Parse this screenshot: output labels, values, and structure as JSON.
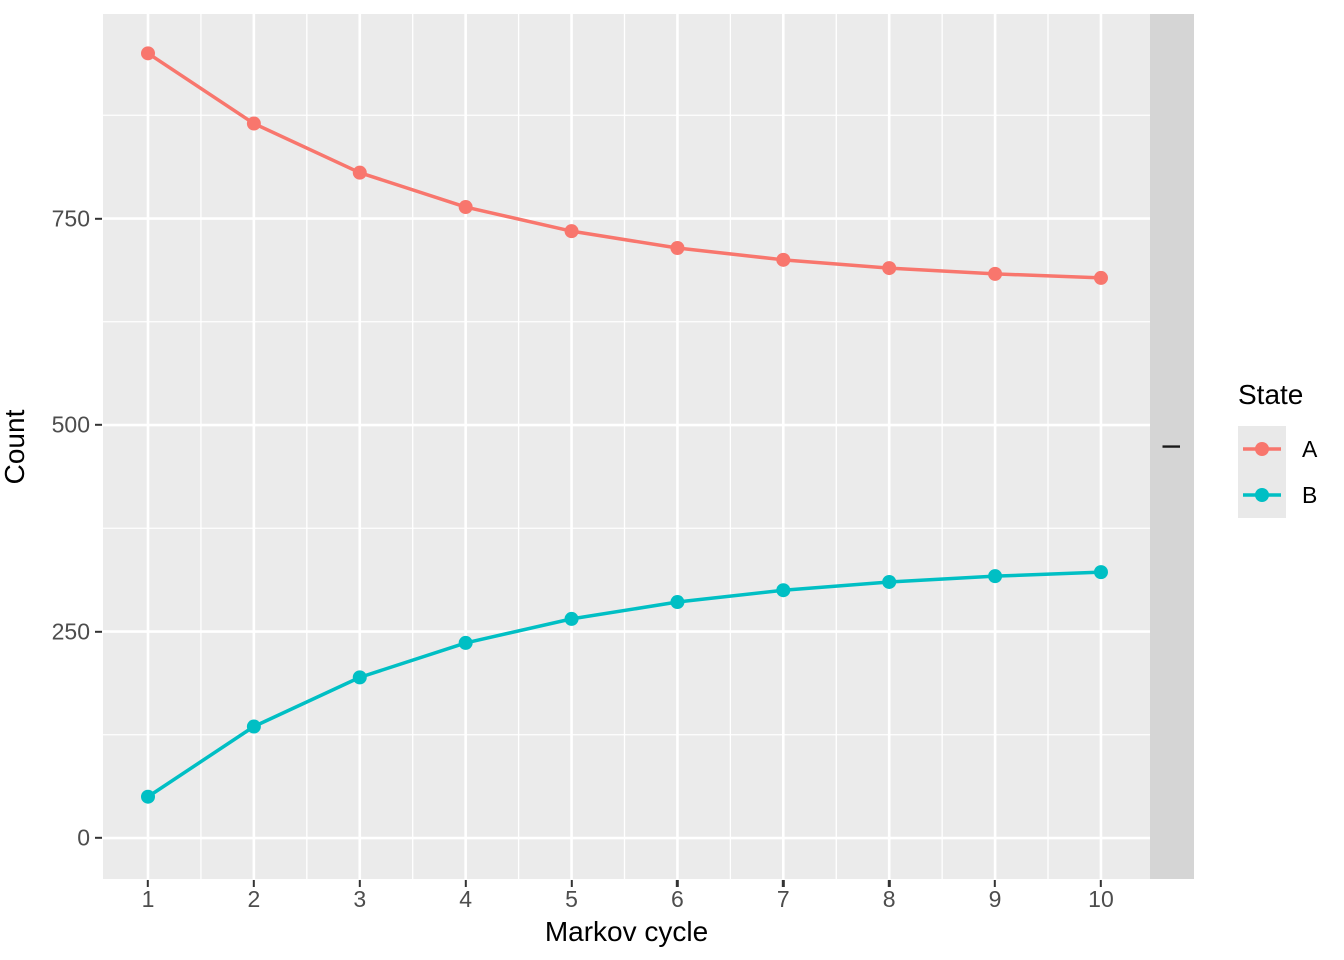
{
  "chart_data": {
    "type": "line",
    "title": "",
    "xlabel": "Markov cycle",
    "ylabel": "Count",
    "x": [
      1,
      2,
      3,
      4,
      5,
      6,
      7,
      8,
      9,
      10
    ],
    "series": [
      {
        "name": "A",
        "color": "#F8766D",
        "values": [
          950,
          865,
          805.5,
          763.9,
          734.7,
          714.3,
          700,
          690,
          683,
          678.1
        ]
      },
      {
        "name": "B",
        "color": "#00BFC4",
        "values": [
          50,
          135,
          194.5,
          236.2,
          265.3,
          285.7,
          300,
          310,
          317,
          321.9
        ]
      }
    ],
    "x_ticks": [
      1,
      2,
      3,
      4,
      5,
      6,
      7,
      8,
      9,
      10
    ],
    "y_ticks": [
      0,
      250,
      500,
      750
    ],
    "x_minor_gridlines": [
      1.5,
      2.5,
      3.5,
      4.5,
      5.5,
      6.5,
      7.5,
      8.5,
      9.5
    ],
    "y_minor_gridlines": [
      125,
      375,
      625,
      875
    ],
    "xlim": [
      0.575,
      10.463
    ],
    "ylim": [
      -49.6,
      997.6
    ],
    "grid": true,
    "legend": {
      "title": "State",
      "position": "right",
      "items": [
        "A",
        "B"
      ]
    },
    "facet_strip": {
      "label": "I",
      "side": "right"
    },
    "theme": {
      "panel_background": "#EBEBEB",
      "gridline_color": "#FFFFFF",
      "strip_background": "#D5D5D5",
      "strip_text_color": "#1A1A1A",
      "tick_label_color": "#4D4D4D",
      "axis_title_color": "#000000",
      "tick_mark_color": "#333333",
      "legend_key_background": "#E9E9E9"
    }
  }
}
